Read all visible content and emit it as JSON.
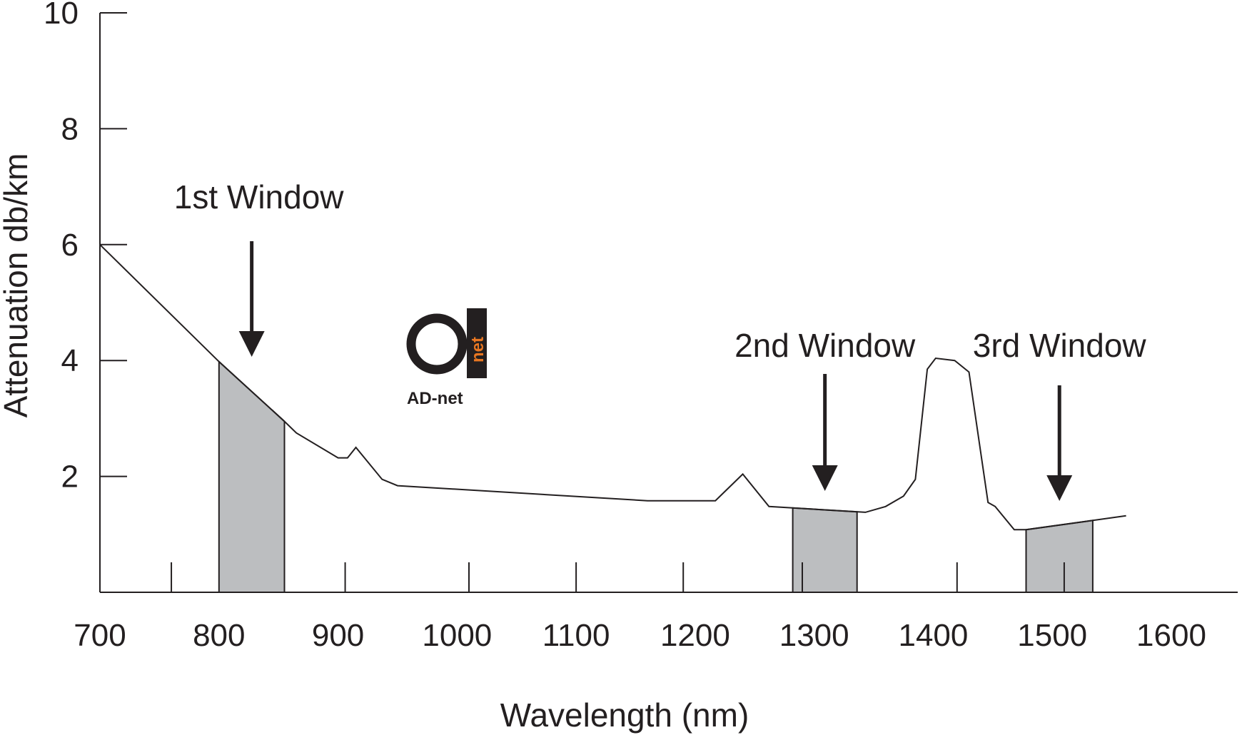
{
  "colors": {
    "ink": "#231f20",
    "window_fill": "#bcbec0",
    "logo_accent": "#e87722"
  },
  "logo": {
    "text": "AD-net",
    "net_text": "net",
    "icon": "ad-net-logo"
  },
  "chart_data": {
    "type": "line",
    "title": "",
    "xlabel": "Wavelength (nm)",
    "ylabel": "Attenuation db/km",
    "xlim": [
      700,
      1620
    ],
    "ylim": [
      0,
      10
    ],
    "grid": false,
    "x_ticks": [
      700,
      800,
      900,
      1000,
      1100,
      1200,
      1300,
      1400,
      1500,
      1600
    ],
    "x_tick_labels": [
      "700",
      "800",
      "900",
      "1000",
      "1100",
      "1200",
      "1300",
      "1400",
      "1500",
      "1600"
    ],
    "x_minor_ticks": [
      760,
      906,
      1010,
      1100,
      1190,
      1290,
      1420,
      1510
    ],
    "y_ticks": [
      2,
      4,
      6,
      8,
      10
    ],
    "y_tick_labels": [
      "2",
      "4",
      "6",
      "8",
      "10"
    ],
    "series": [
      {
        "x": [
          700,
          800,
          855,
          865,
          900,
          908,
          915,
          937,
          950,
          1160,
          1217,
          1240,
          1262,
          1343,
          1360,
          1375,
          1385,
          1395,
          1402,
          1418,
          1430,
          1446,
          1452,
          1468,
          1478,
          1562
        ],
        "y": [
          6.0,
          3.98,
          2.95,
          2.75,
          2.32,
          2.32,
          2.5,
          1.95,
          1.84,
          1.58,
          1.58,
          2.04,
          1.48,
          1.38,
          1.48,
          1.66,
          1.95,
          3.85,
          4.04,
          4.0,
          3.8,
          1.55,
          1.48,
          1.08,
          1.08,
          1.32
        ]
      }
    ],
    "windows": [
      {
        "label": "1st Window",
        "x_start": 800,
        "x_end": 855
      },
      {
        "label": "2nd Window",
        "x_start": 1282,
        "x_end": 1336
      },
      {
        "label": "3rd Window",
        "x_start": 1478,
        "x_end": 1534
      }
    ]
  }
}
